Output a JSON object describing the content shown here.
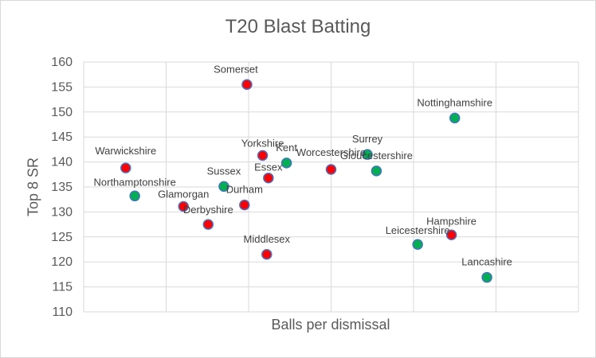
{
  "chart_data": {
    "type": "scatter",
    "title": "T20 Blast Batting",
    "xlabel": "Balls per dismissal",
    "ylabel": "Top 8 SR",
    "ylim": [
      110,
      160
    ],
    "yticks": [
      "110",
      "115",
      "120",
      "125",
      "130",
      "135",
      "140",
      "145",
      "150",
      "155",
      "160"
    ],
    "xlim": [
      0,
      6
    ],
    "xtick_labels_shown": false,
    "grid": true,
    "legend": "none",
    "colors": {
      "red_fill": "#ff0000",
      "green_fill": "#00b050",
      "marker_edge": "#4472c4",
      "grid": "#d9d9d9",
      "text": "#595959"
    },
    "points": [
      {
        "label": "Somerset",
        "x": 1.98,
        "y": 155.5,
        "color": "red"
      },
      {
        "label": "Nottinghamshire",
        "x": 4.5,
        "y": 148.8,
        "color": "green"
      },
      {
        "label": "Yorkshire",
        "x": 2.17,
        "y": 141.3,
        "color": "red"
      },
      {
        "label": "Surrey",
        "x": 3.44,
        "y": 141.5,
        "color": "green"
      },
      {
        "label": "Warwickshire",
        "x": 0.51,
        "y": 138.8,
        "color": "red"
      },
      {
        "label": "Kent",
        "x": 2.46,
        "y": 139.8,
        "color": "green"
      },
      {
        "label": "Worcestershire",
        "x": 3.0,
        "y": 138.5,
        "color": "red"
      },
      {
        "label": "Gloucestershire",
        "x": 3.55,
        "y": 138.2,
        "color": "green"
      },
      {
        "label": "Essex",
        "x": 2.24,
        "y": 136.8,
        "color": "red"
      },
      {
        "label": "Sussex",
        "x": 1.7,
        "y": 135.1,
        "color": "green"
      },
      {
        "label": "Northamptonshire",
        "x": 0.62,
        "y": 133.2,
        "color": "green"
      },
      {
        "label": "Durham",
        "x": 1.95,
        "y": 131.4,
        "color": "red"
      },
      {
        "label": "Glamorgan",
        "x": 1.21,
        "y": 131.1,
        "color": "red"
      },
      {
        "label": "Derbyshire",
        "x": 1.51,
        "y": 127.5,
        "color": "red"
      },
      {
        "label": "Hampshire",
        "x": 4.46,
        "y": 125.4,
        "color": "red"
      },
      {
        "label": "Leicestershire",
        "x": 4.05,
        "y": 123.5,
        "color": "green"
      },
      {
        "label": "Middlesex",
        "x": 2.22,
        "y": 121.5,
        "color": "red"
      },
      {
        "label": "Lancashire",
        "x": 4.89,
        "y": 116.9,
        "color": "green"
      }
    ]
  }
}
